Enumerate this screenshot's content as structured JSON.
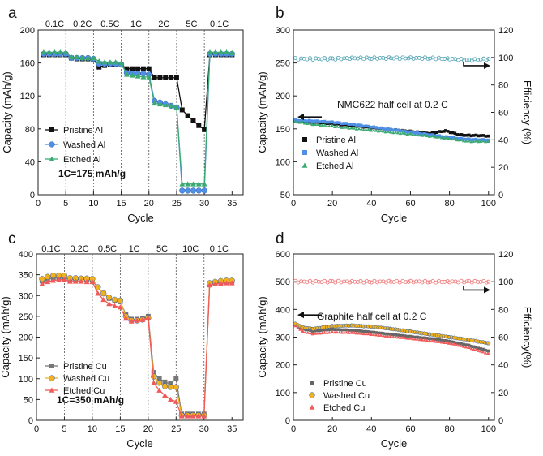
{
  "chart_data": [
    {
      "type": "scatter",
      "panel_label": "a",
      "xlabel": "Cycle",
      "ylabel": "Capacity (mAh/g)",
      "xlim": [
        0,
        37
      ],
      "ylim": [
        0,
        200
      ],
      "xticks": [
        0,
        5,
        10,
        15,
        20,
        25,
        30,
        35
      ],
      "yticks": [
        0,
        40,
        80,
        120,
        160,
        200
      ],
      "grid": false,
      "rate_dividers": [
        5,
        10,
        15,
        20,
        25,
        30
      ],
      "rate_labels": [
        {
          "label": "0.1C",
          "at": 3
        },
        {
          "label": "0.2C",
          "at": 8
        },
        {
          "label": "0.5C",
          "at": 13
        },
        {
          "label": "1C",
          "at": 17.7
        },
        {
          "label": "2C",
          "at": 22.7
        },
        {
          "label": "5C",
          "at": 27.7
        },
        {
          "label": "0.1C",
          "at": 32.7
        }
      ],
      "annotations": [
        "1C=175 mAh/g"
      ],
      "legend_position": "bottom-left",
      "series": [
        {
          "name": "Pristine Al",
          "marker": "square",
          "color": "#111111",
          "x": [
            1,
            2,
            3,
            4,
            5,
            6,
            7,
            8,
            9,
            10,
            11,
            12,
            13,
            14,
            15,
            16,
            17,
            18,
            19,
            20,
            21,
            22,
            23,
            24,
            25,
            26,
            27,
            28,
            29,
            30,
            31,
            32,
            33,
            34,
            35
          ],
          "y": [
            170,
            170,
            170,
            170,
            170,
            166,
            165,
            165,
            165,
            164,
            155,
            157,
            158,
            158,
            158,
            153,
            153,
            153,
            153,
            153,
            142,
            142,
            142,
            142,
            142,
            103,
            96,
            90,
            84,
            79,
            170,
            170,
            170,
            170,
            170
          ]
        },
        {
          "name": "Washed Al",
          "marker": "circle",
          "color": "#4f8fe6",
          "x": [
            1,
            2,
            3,
            4,
            5,
            6,
            7,
            8,
            9,
            10,
            11,
            12,
            13,
            14,
            15,
            16,
            17,
            18,
            19,
            20,
            21,
            22,
            23,
            24,
            25,
            26,
            27,
            28,
            29,
            30,
            31,
            32,
            33,
            34,
            35
          ],
          "y": [
            171,
            171,
            171,
            171,
            171,
            166,
            166,
            166,
            166,
            165,
            159,
            159,
            159,
            159,
            158,
            148,
            147,
            147,
            147,
            146,
            114,
            112,
            110,
            108,
            106,
            5,
            5,
            5,
            5,
            5,
            171,
            171,
            171,
            171,
            171
          ]
        },
        {
          "name": "Etched Al",
          "marker": "triangle",
          "color": "#3aaa72",
          "x": [
            1,
            2,
            3,
            4,
            5,
            6,
            7,
            8,
            9,
            10,
            11,
            12,
            13,
            14,
            15,
            16,
            17,
            18,
            19,
            20,
            21,
            22,
            23,
            24,
            25,
            26,
            27,
            28,
            29,
            30,
            31,
            32,
            33,
            34,
            35
          ],
          "y": [
            173,
            173,
            173,
            173,
            173,
            167,
            167,
            166,
            166,
            166,
            162,
            161,
            161,
            161,
            160,
            146,
            145,
            144,
            143,
            143,
            111,
            110,
            109,
            108,
            106,
            13,
            13,
            13,
            13,
            13,
            173,
            173,
            173,
            173,
            172
          ]
        }
      ]
    },
    {
      "type": "scatter",
      "panel_label": "b",
      "xlabel": "Cycle",
      "ylabel": "Capacity (mAh/g)",
      "y2label": "Efficiency (%)",
      "xlim": [
        0,
        103
      ],
      "ylim": [
        50,
        300
      ],
      "y2lim": [
        0,
        120
      ],
      "xticks": [
        0,
        20,
        40,
        60,
        80,
        100
      ],
      "yticks": [
        50,
        100,
        150,
        200,
        250,
        300
      ],
      "y2ticks": [
        0,
        20,
        40,
        60,
        80,
        100,
        120
      ],
      "grid": false,
      "annotations": [
        "NMC622 half cell at 0.2 C"
      ],
      "legend_position": "bottom-left",
      "series": [
        {
          "name": "Pristine Al",
          "marker": "square",
          "color": "#111111",
          "axis": "left",
          "x": [
            1,
            10,
            20,
            30,
            40,
            50,
            60,
            70,
            78,
            85,
            90,
            95,
            100
          ],
          "y": [
            162,
            160,
            158,
            155,
            152,
            149,
            146,
            143,
            147,
            141,
            140,
            140,
            139
          ]
        },
        {
          "name": "Washed Al",
          "marker": "square",
          "color": "#4f8fe6",
          "axis": "left",
          "x": [
            1,
            10,
            20,
            30,
            40,
            50,
            60,
            70,
            80,
            90,
            100
          ],
          "y": [
            163,
            162,
            160,
            157,
            153,
            149,
            145,
            141,
            137,
            134,
            133
          ]
        },
        {
          "name": "Etched Al",
          "marker": "triangle",
          "color": "#3aaa72",
          "axis": "left",
          "x": [
            1,
            10,
            20,
            30,
            40,
            50,
            60,
            70,
            80,
            90,
            100
          ],
          "y": [
            161,
            157,
            154,
            151,
            148,
            145,
            142,
            139,
            135,
            131,
            131
          ]
        },
        {
          "name": "Efficiency",
          "marker": "circle-open",
          "color": "#5aa8b8",
          "axis": "right",
          "x": [
            1,
            10,
            20,
            30,
            40,
            50,
            60,
            70,
            80,
            90,
            100
          ],
          "y": [
            99,
            99,
            99,
            99.5,
            99.5,
            99.5,
            99.5,
            99.5,
            99,
            98,
            99
          ]
        }
      ]
    },
    {
      "type": "scatter",
      "panel_label": "c",
      "xlabel": "Cycle",
      "ylabel": "Capacity (mAh/g)",
      "xlim": [
        0,
        37
      ],
      "ylim": [
        0,
        400
      ],
      "xticks": [
        0,
        5,
        10,
        15,
        20,
        25,
        30,
        35
      ],
      "yticks": [
        0,
        50,
        100,
        150,
        200,
        250,
        300,
        350,
        400
      ],
      "grid": false,
      "rate_dividers": [
        5,
        10,
        15,
        20,
        25,
        30
      ],
      "rate_labels": [
        {
          "label": "0.1C",
          "at": 2.6
        },
        {
          "label": "0.2C",
          "at": 7.7
        },
        {
          "label": "0.5C",
          "at": 12.7
        },
        {
          "label": "1C",
          "at": 17.5
        },
        {
          "label": "5C",
          "at": 22.5
        },
        {
          "label": "10C",
          "at": 27.6
        },
        {
          "label": "0.1C",
          "at": 32.7
        }
      ],
      "annotations": [
        "1C=350 mAh/g"
      ],
      "legend_position": "bottom-left",
      "series": [
        {
          "name": "Pristine Cu",
          "marker": "square",
          "color": "#777777",
          "x": [
            1,
            2,
            3,
            4,
            5,
            6,
            7,
            8,
            9,
            10,
            11,
            12,
            13,
            14,
            15,
            16,
            17,
            18,
            19,
            20,
            21,
            22,
            23,
            24,
            25,
            26,
            27,
            28,
            29,
            30,
            31,
            32,
            33,
            34,
            35
          ],
          "y": [
            335,
            340,
            342,
            342,
            342,
            338,
            338,
            338,
            338,
            337,
            318,
            305,
            293,
            288,
            285,
            255,
            243,
            243,
            245,
            250,
            115,
            100,
            92,
            88,
            100,
            15,
            15,
            15,
            15,
            15,
            328,
            330,
            332,
            333,
            334
          ]
        },
        {
          "name": "Washed Cu",
          "marker": "circle",
          "color": "#f0b020",
          "x": [
            1,
            2,
            3,
            4,
            5,
            6,
            7,
            8,
            9,
            10,
            11,
            12,
            13,
            14,
            15,
            16,
            17,
            18,
            19,
            20,
            21,
            22,
            23,
            24,
            25,
            26,
            27,
            28,
            29,
            30,
            31,
            32,
            33,
            34,
            35
          ],
          "y": [
            340,
            345,
            348,
            348,
            348,
            342,
            342,
            341,
            341,
            340,
            320,
            305,
            295,
            290,
            288,
            250,
            240,
            240,
            242,
            246,
            105,
            90,
            82,
            80,
            80,
            12,
            12,
            12,
            12,
            12,
            330,
            333,
            335,
            336,
            336
          ]
        },
        {
          "name": "Etched Cu",
          "marker": "triangle",
          "color": "#f05a5a",
          "x": [
            1,
            2,
            3,
            4,
            5,
            6,
            7,
            8,
            9,
            10,
            11,
            12,
            13,
            14,
            15,
            16,
            17,
            18,
            19,
            20,
            21,
            22,
            23,
            24,
            25,
            26,
            27,
            28,
            29,
            30,
            31,
            32,
            33,
            34,
            35
          ],
          "y": [
            328,
            333,
            336,
            338,
            338,
            334,
            334,
            334,
            333,
            333,
            305,
            290,
            280,
            275,
            272,
            245,
            238,
            240,
            242,
            246,
            90,
            72,
            60,
            50,
            45,
            10,
            10,
            10,
            10,
            10,
            325,
            328,
            329,
            330,
            330
          ]
        }
      ]
    },
    {
      "type": "scatter",
      "panel_label": "d",
      "xlabel": "Cycle",
      "ylabel": "Capacity (mAh/g)",
      "y2label": "Efficiency(%)",
      "xlim": [
        0,
        103
      ],
      "ylim": [
        0,
        600
      ],
      "y2lim": [
        0,
        120
      ],
      "xticks": [
        0,
        20,
        40,
        60,
        80,
        100
      ],
      "yticks": [
        0,
        100,
        200,
        300,
        400,
        500,
        600
      ],
      "y2ticks": [
        0,
        20,
        40,
        60,
        80,
        100,
        120
      ],
      "grid": false,
      "annotations": [
        "Graphite half cell at 0.2 C"
      ],
      "legend_position": "bottom-left",
      "series": [
        {
          "name": "Pristine Cu",
          "marker": "square",
          "color": "#666666",
          "axis": "left",
          "x": [
            1,
            5,
            10,
            20,
            30,
            40,
            50,
            60,
            70,
            80,
            90,
            100
          ],
          "y": [
            345,
            330,
            322,
            328,
            325,
            318,
            310,
            302,
            295,
            285,
            270,
            250
          ]
        },
        {
          "name": "Washed Cu",
          "marker": "circle",
          "color": "#f0b020",
          "axis": "left",
          "x": [
            1,
            5,
            10,
            20,
            30,
            40,
            50,
            60,
            70,
            80,
            90,
            100
          ],
          "y": [
            348,
            335,
            330,
            340,
            342,
            338,
            330,
            320,
            310,
            300,
            290,
            278
          ]
        },
        {
          "name": "Etched Cu",
          "marker": "triangle",
          "color": "#f05a5a",
          "axis": "left",
          "x": [
            1,
            5,
            10,
            20,
            30,
            40,
            50,
            60,
            70,
            80,
            90,
            100
          ],
          "y": [
            340,
            320,
            312,
            318,
            316,
            310,
            302,
            295,
            287,
            278,
            262,
            240
          ]
        },
        {
          "name": "Efficiency",
          "marker": "circle-open",
          "color": "#f08080",
          "axis": "right",
          "x": [
            1,
            10,
            20,
            30,
            40,
            50,
            60,
            70,
            80,
            90,
            100
          ],
          "y": [
            100,
            100,
            100,
            100,
            100,
            100,
            100,
            100,
            100,
            100,
            100
          ]
        }
      ]
    }
  ]
}
